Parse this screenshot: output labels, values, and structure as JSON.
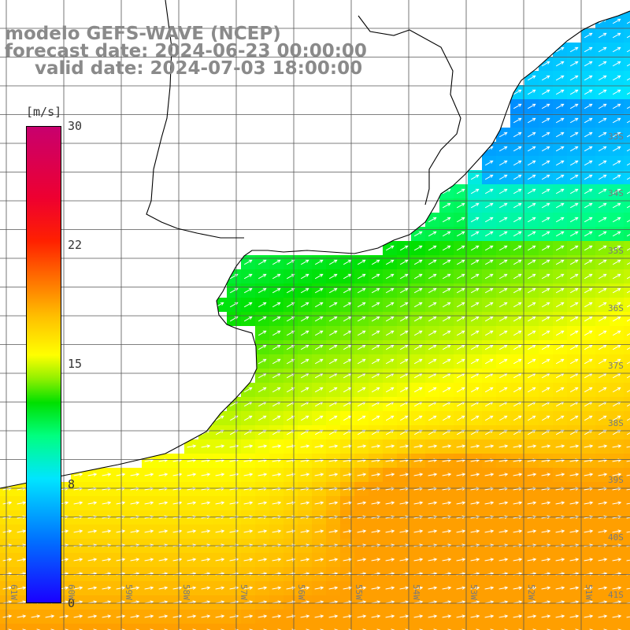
{
  "title": {
    "line1": "modelo GEFS-WAVE (NCEP)",
    "line2": "forecast date: 2024-06-23 00:00:00",
    "line3": "valid date: 2024-07-03 18:00:00"
  },
  "colorbar": {
    "unit": "[m/s]",
    "ticks": [
      {
        "label": "30",
        "value": 30
      },
      {
        "label": "22",
        "value": 22
      },
      {
        "label": "15",
        "value": 15
      },
      {
        "label": "8",
        "value": 8
      },
      {
        "label": "0",
        "value": 0
      }
    ]
  },
  "map": {
    "lon_range": [
      -61.2,
      -50.3
    ],
    "lat_range": [
      -41.2,
      -30.3
    ],
    "lat_labels": [
      "33S",
      "34S",
      "35S",
      "36S",
      "37S",
      "38S",
      "39S",
      "40S",
      "41S"
    ],
    "lon_labels": [
      "61W",
      "60W",
      "59W",
      "58W",
      "57W",
      "56W",
      "55W",
      "54W",
      "53W",
      "52W",
      "51W"
    ],
    "field": "10 m wind speed with direction arrows",
    "colors": {
      "coast": "#000000",
      "grid": "#555555",
      "land": "#ffffff",
      "arrow": "#ffffff",
      "title": "#8a8a8a"
    }
  }
}
